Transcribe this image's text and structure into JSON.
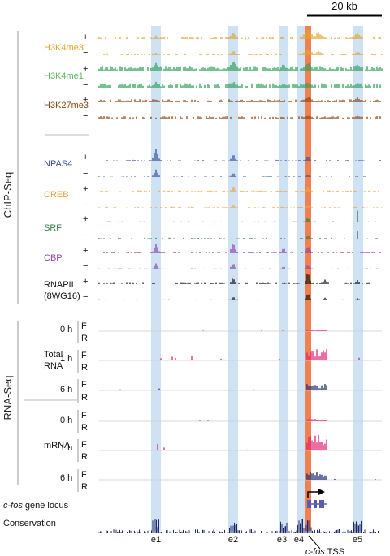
{
  "scale_bar_label": "20 kb",
  "sections": {
    "chip_label": "ChIP-Seq",
    "rna_label": "RNA-Seq"
  },
  "chip_tracks": [
    {
      "name": "H3K4me3",
      "color": "#e0a52e",
      "strands": [
        "+",
        "−"
      ]
    },
    {
      "name": "H3K4me1",
      "color": "#2e9e5a",
      "strands": [
        "+",
        "−"
      ]
    },
    {
      "name": "H3K27me3",
      "color": "#8b4513",
      "strands": [
        "+",
        "−"
      ]
    },
    {
      "name": "NPAS4",
      "color": "#3b4fa0",
      "strands": [
        "+",
        "−"
      ]
    },
    {
      "name": "CREB",
      "color": "#f0a040",
      "strands": [
        "+",
        "−"
      ]
    },
    {
      "name": "SRF",
      "color": "#2e7a40",
      "strands": [
        "+",
        "−"
      ]
    },
    {
      "name": "CBP",
      "color": "#8e44ad",
      "strands": [
        "+",
        "−"
      ]
    },
    {
      "name": "RNAPII",
      "name2": "(8WG16)",
      "color": "#111111",
      "strands": [
        "+",
        "−"
      ]
    }
  ],
  "rna_groups": [
    {
      "name": "Total",
      "name2": "RNA",
      "times": [
        "0 h",
        "1 h",
        "6 h"
      ]
    },
    {
      "name": "mRNA",
      "name2": "",
      "times": [
        "0 h",
        "1 h",
        "6 h"
      ]
    }
  ],
  "strand_FR": [
    "F",
    "R"
  ],
  "gene_locus_label_italic": "c-fos",
  "gene_locus_label_rest": " gene locus",
  "conservation_label": "Conservation",
  "elements": [
    "e1",
    "e2",
    "e3",
    "e4",
    "e5"
  ],
  "tss_label_italic": "c-fos",
  "tss_label_rest": " TSS",
  "colors": {
    "highlight_blue": "#cfe2f3",
    "highlight_orange": "#f08050",
    "rna_forward": "#e0226e",
    "rna_reverse": "#1f2a6e",
    "conservation": "#1f2a6e",
    "gene": "#5b5bb0"
  }
}
